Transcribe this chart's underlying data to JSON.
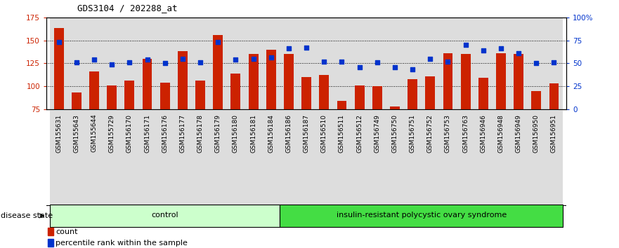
{
  "title": "GDS3104 / 202288_at",
  "samples": [
    "GSM155631",
    "GSM155643",
    "GSM155644",
    "GSM155729",
    "GSM156170",
    "GSM156171",
    "GSM156176",
    "GSM156177",
    "GSM156178",
    "GSM156179",
    "GSM156180",
    "GSM156181",
    "GSM156184",
    "GSM156186",
    "GSM156187",
    "GSM156510",
    "GSM156511",
    "GSM156512",
    "GSM156749",
    "GSM156750",
    "GSM156751",
    "GSM156752",
    "GSM156753",
    "GSM156763",
    "GSM156946",
    "GSM156948",
    "GSM156949",
    "GSM156950",
    "GSM156951"
  ],
  "counts": [
    163,
    93,
    116,
    101,
    106,
    130,
    104,
    138,
    106,
    156,
    114,
    135,
    140,
    135,
    110,
    112,
    84,
    101,
    100,
    78,
    108,
    111,
    136,
    135,
    109,
    136,
    135,
    95,
    103
  ],
  "percentiles": [
    73,
    51,
    54,
    49,
    51,
    54,
    50,
    55,
    51,
    73,
    54,
    55,
    56,
    66,
    67,
    52,
    52,
    46,
    51,
    46,
    43,
    55,
    52,
    70,
    64,
    66,
    61,
    50,
    51
  ],
  "control_count": 13,
  "disease_count": 16,
  "bar_color": "#CC2200",
  "dot_color": "#0033CC",
  "bar_bottom": 75,
  "ylim_left": [
    75,
    175
  ],
  "ylim_right": [
    0,
    100
  ],
  "yticks_left": [
    75,
    100,
    125,
    150,
    175
  ],
  "yticks_right": [
    0,
    25,
    50,
    75,
    100
  ],
  "ytick_labels_right": [
    "0",
    "25",
    "50",
    "75",
    "100%"
  ],
  "col_bg_even": "#E0E0E0",
  "col_bg_odd": "#E0E0E0",
  "control_color": "#CCFFCC",
  "disease_color": "#44DD44",
  "bg_color": "#FFFFFF"
}
